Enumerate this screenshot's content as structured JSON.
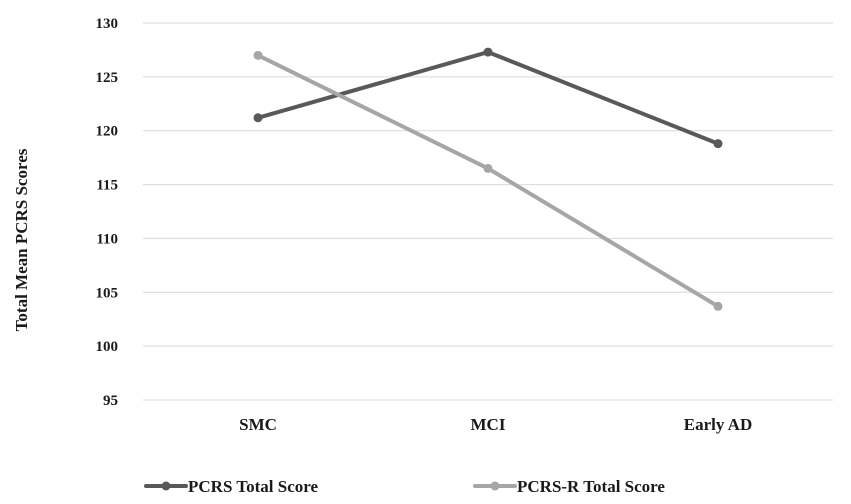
{
  "chart_data": {
    "type": "line",
    "categories": [
      "SMC",
      "MCI",
      "Early AD"
    ],
    "series": [
      {
        "name": "PCRS Total Score",
        "values": [
          121.2,
          127.3,
          118.8
        ],
        "color": "#595959"
      },
      {
        "name": "PCRS-R Total Score",
        "values": [
          127.0,
          116.5,
          103.7
        ],
        "color": "#a6a6a6"
      }
    ],
    "ylabel": "Total Mean PCRS Scores",
    "xlabel": "",
    "ylim": [
      95,
      130
    ],
    "yticks": [
      "95",
      "100",
      "105",
      "110",
      "115",
      "120",
      "125",
      "130"
    ],
    "grid": true,
    "legend_position": "bottom-left",
    "gridline_color": "#d9d9d9"
  }
}
